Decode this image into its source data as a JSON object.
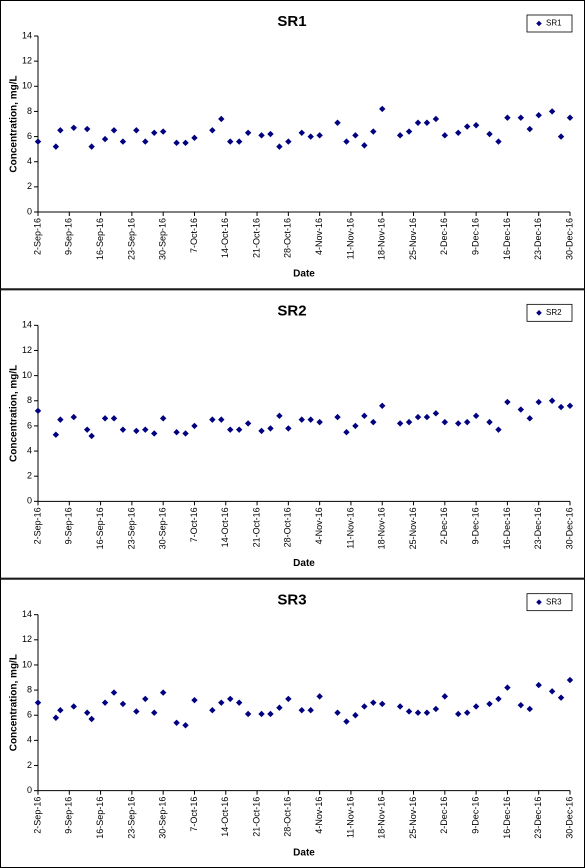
{
  "chart_data": [
    {
      "type": "scatter",
      "title": "SR1",
      "x_label": "Date",
      "y_label": "Concentration, mg/L",
      "x": [
        "2016-09-02",
        "2016-09-06",
        "2016-09-07",
        "2016-09-10",
        "2016-09-13",
        "2016-09-14",
        "2016-09-17",
        "2016-09-19",
        "2016-09-21",
        "2016-09-24",
        "2016-09-26",
        "2016-09-28",
        "2016-09-30",
        "2016-10-03",
        "2016-10-05",
        "2016-10-07",
        "2016-10-11",
        "2016-10-13",
        "2016-10-15",
        "2016-10-17",
        "2016-10-19",
        "2016-10-22",
        "2016-10-24",
        "2016-10-26",
        "2016-10-28",
        "2016-10-31",
        "2016-11-02",
        "2016-11-04",
        "2016-11-08",
        "2016-11-10",
        "2016-11-12",
        "2016-11-14",
        "2016-11-16",
        "2016-11-18",
        "2016-11-22",
        "2016-11-24",
        "2016-11-26",
        "2016-11-28",
        "2016-11-30",
        "2016-12-02",
        "2016-12-05",
        "2016-12-07",
        "2016-12-09",
        "2016-12-12",
        "2016-12-14",
        "2016-12-16",
        "2016-12-19",
        "2016-12-21",
        "2016-12-23",
        "2016-12-26",
        "2016-12-28",
        "2016-12-30"
      ],
      "series": [
        {
          "name": "SR1",
          "color": "#000080",
          "values": [
            5.6,
            5.2,
            6.5,
            6.7,
            6.6,
            5.2,
            5.8,
            6.5,
            5.6,
            6.5,
            5.6,
            6.3,
            6.4,
            5.5,
            5.5,
            5.9,
            6.5,
            7.4,
            5.6,
            5.6,
            6.3,
            6.1,
            6.2,
            5.2,
            5.6,
            6.3,
            6.0,
            6.1,
            7.1,
            5.6,
            6.1,
            5.3,
            6.4,
            8.2,
            6.1,
            6.4,
            7.1,
            7.1,
            7.4,
            6.1,
            6.3,
            6.8,
            6.9,
            6.2,
            5.6,
            7.5,
            7.5,
            6.6,
            7.7,
            8.0,
            6.0,
            7.5
          ]
        }
      ],
      "xlim": [
        "2016-09-02",
        "2016-12-30"
      ],
      "xticks": [
        {
          "value": "2016-09-02",
          "label": "2-Sep-16"
        },
        {
          "value": "2016-09-09",
          "label": "9-Sep-16"
        },
        {
          "value": "2016-09-16",
          "label": "16-Sep-16"
        },
        {
          "value": "2016-09-23",
          "label": "23-Sep-16"
        },
        {
          "value": "2016-09-30",
          "label": "30-Sep-16"
        },
        {
          "value": "2016-10-07",
          "label": "7-Oct-16"
        },
        {
          "value": "2016-10-14",
          "label": "14-Oct-16"
        },
        {
          "value": "2016-10-21",
          "label": "21-Oct-16"
        },
        {
          "value": "2016-10-28",
          "label": "28-Oct-16"
        },
        {
          "value": "2016-11-04",
          "label": "4-Nov-16"
        },
        {
          "value": "2016-11-11",
          "label": "11-Nov-16"
        },
        {
          "value": "2016-11-18",
          "label": "18-Nov-16"
        },
        {
          "value": "2016-11-25",
          "label": "25-Nov-16"
        },
        {
          "value": "2016-12-02",
          "label": "2-Dec-16"
        },
        {
          "value": "2016-12-09",
          "label": "9-Dec-16"
        },
        {
          "value": "2016-12-16",
          "label": "16-Dec-16"
        },
        {
          "value": "2016-12-23",
          "label": "23-Dec-16"
        },
        {
          "value": "2016-12-30",
          "label": "30-Dec-16"
        }
      ],
      "ylim": [
        0,
        14
      ],
      "yticks": [
        0,
        2,
        4,
        6,
        8,
        10,
        12,
        14
      ],
      "legend": "upper right"
    },
    {
      "type": "scatter",
      "title": "SR2",
      "x_label": "Date",
      "y_label": "Concentration, mg/L",
      "x": [
        "2016-09-02",
        "2016-09-06",
        "2016-09-07",
        "2016-09-10",
        "2016-09-13",
        "2016-09-14",
        "2016-09-17",
        "2016-09-19",
        "2016-09-21",
        "2016-09-24",
        "2016-09-26",
        "2016-09-28",
        "2016-09-30",
        "2016-10-03",
        "2016-10-05",
        "2016-10-07",
        "2016-10-11",
        "2016-10-13",
        "2016-10-15",
        "2016-10-17",
        "2016-10-19",
        "2016-10-22",
        "2016-10-24",
        "2016-10-26",
        "2016-10-28",
        "2016-10-31",
        "2016-11-02",
        "2016-11-04",
        "2016-11-08",
        "2016-11-10",
        "2016-11-12",
        "2016-11-14",
        "2016-11-16",
        "2016-11-18",
        "2016-11-22",
        "2016-11-24",
        "2016-11-26",
        "2016-11-28",
        "2016-11-30",
        "2016-12-02",
        "2016-12-05",
        "2016-12-07",
        "2016-12-09",
        "2016-12-12",
        "2016-12-14",
        "2016-12-16",
        "2016-12-19",
        "2016-12-21",
        "2016-12-23",
        "2016-12-26",
        "2016-12-28",
        "2016-12-30"
      ],
      "series": [
        {
          "name": "SR2",
          "color": "#000080",
          "values": [
            7.2,
            5.3,
            6.5,
            6.7,
            5.7,
            5.2,
            6.6,
            6.6,
            5.7,
            5.6,
            5.7,
            5.4,
            6.6,
            5.5,
            5.4,
            6.0,
            6.5,
            6.5,
            5.7,
            5.7,
            6.2,
            5.6,
            5.8,
            6.8,
            5.8,
            6.5,
            6.5,
            6.3,
            6.7,
            5.5,
            6.0,
            6.8,
            6.3,
            7.6,
            6.2,
            6.3,
            6.7,
            6.7,
            7.0,
            6.3,
            6.2,
            6.3,
            6.8,
            6.3,
            5.7,
            7.9,
            7.3,
            6.6,
            7.9,
            8.0,
            7.5,
            7.6
          ]
        }
      ],
      "xlim": [
        "2016-09-02",
        "2016-12-30"
      ],
      "xticks": [
        {
          "value": "2016-09-02",
          "label": "2-Sep-16"
        },
        {
          "value": "2016-09-09",
          "label": "9-Sep-16"
        },
        {
          "value": "2016-09-16",
          "label": "16-Sep-16"
        },
        {
          "value": "2016-09-23",
          "label": "23-Sep-16"
        },
        {
          "value": "2016-09-30",
          "label": "30-Sep-16"
        },
        {
          "value": "2016-10-07",
          "label": "7-Oct-16"
        },
        {
          "value": "2016-10-14",
          "label": "14-Oct-16"
        },
        {
          "value": "2016-10-21",
          "label": "21-Oct-16"
        },
        {
          "value": "2016-10-28",
          "label": "28-Oct-16"
        },
        {
          "value": "2016-11-04",
          "label": "4-Nov-16"
        },
        {
          "value": "2016-11-11",
          "label": "11-Nov-16"
        },
        {
          "value": "2016-11-18",
          "label": "18-Nov-16"
        },
        {
          "value": "2016-11-25",
          "label": "25-Nov-16"
        },
        {
          "value": "2016-12-02",
          "label": "2-Dec-16"
        },
        {
          "value": "2016-12-09",
          "label": "9-Dec-16"
        },
        {
          "value": "2016-12-16",
          "label": "16-Dec-16"
        },
        {
          "value": "2016-12-23",
          "label": "23-Dec-16"
        },
        {
          "value": "2016-12-30",
          "label": "30-Dec-16"
        }
      ],
      "ylim": [
        0,
        14
      ],
      "yticks": [
        0,
        2,
        4,
        6,
        8,
        10,
        12,
        14
      ],
      "legend": "upper right"
    },
    {
      "type": "scatter",
      "title": "SR3",
      "x_label": "Date",
      "y_label": "Concentration, mg/L",
      "x": [
        "2016-09-02",
        "2016-09-06",
        "2016-09-07",
        "2016-09-10",
        "2016-09-13",
        "2016-09-14",
        "2016-09-17",
        "2016-09-19",
        "2016-09-21",
        "2016-09-24",
        "2016-09-26",
        "2016-09-28",
        "2016-09-30",
        "2016-10-03",
        "2016-10-05",
        "2016-10-07",
        "2016-10-11",
        "2016-10-13",
        "2016-10-15",
        "2016-10-17",
        "2016-10-19",
        "2016-10-22",
        "2016-10-24",
        "2016-10-26",
        "2016-10-28",
        "2016-10-31",
        "2016-11-02",
        "2016-11-04",
        "2016-11-08",
        "2016-11-10",
        "2016-11-12",
        "2016-11-14",
        "2016-11-16",
        "2016-11-18",
        "2016-11-22",
        "2016-11-24",
        "2016-11-26",
        "2016-11-28",
        "2016-11-30",
        "2016-12-02",
        "2016-12-05",
        "2016-12-07",
        "2016-12-09",
        "2016-12-12",
        "2016-12-14",
        "2016-12-16",
        "2016-12-19",
        "2016-12-21",
        "2016-12-23",
        "2016-12-26",
        "2016-12-28",
        "2016-12-30"
      ],
      "series": [
        {
          "name": "SR3",
          "color": "#000080",
          "values": [
            7.0,
            5.8,
            6.4,
            6.7,
            6.2,
            5.7,
            7.0,
            7.8,
            6.9,
            6.3,
            7.3,
            6.2,
            7.8,
            5.4,
            5.2,
            7.2,
            6.4,
            7.0,
            7.3,
            7.0,
            6.1,
            6.1,
            6.1,
            6.6,
            7.3,
            6.4,
            6.4,
            7.5,
            6.2,
            5.5,
            6.0,
            6.7,
            7.0,
            6.9,
            6.7,
            6.3,
            6.2,
            6.2,
            6.5,
            7.5,
            6.1,
            6.2,
            6.7,
            6.9,
            7.3,
            8.2,
            6.8,
            6.5,
            8.4,
            7.9,
            7.4,
            8.8
          ]
        }
      ],
      "xlim": [
        "2016-09-02",
        "2016-12-30"
      ],
      "xticks": [
        {
          "value": "2016-09-02",
          "label": "2-Sep-16"
        },
        {
          "value": "2016-09-09",
          "label": "9-Sep-16"
        },
        {
          "value": "2016-09-16",
          "label": "16-Sep-16"
        },
        {
          "value": "2016-09-23",
          "label": "23-Sep-16"
        },
        {
          "value": "2016-09-30",
          "label": "30-Sep-16"
        },
        {
          "value": "2016-10-07",
          "label": "7-Oct-16"
        },
        {
          "value": "2016-10-14",
          "label": "14-Oct-16"
        },
        {
          "value": "2016-10-21",
          "label": "21-Oct-16"
        },
        {
          "value": "2016-10-28",
          "label": "28-Oct-16"
        },
        {
          "value": "2016-11-04",
          "label": "4-Nov-16"
        },
        {
          "value": "2016-11-11",
          "label": "11-Nov-16"
        },
        {
          "value": "2016-11-18",
          "label": "18-Nov-16"
        },
        {
          "value": "2016-11-25",
          "label": "25-Nov-16"
        },
        {
          "value": "2016-12-02",
          "label": "2-Dec-16"
        },
        {
          "value": "2016-12-09",
          "label": "9-Dec-16"
        },
        {
          "value": "2016-12-16",
          "label": "16-Dec-16"
        },
        {
          "value": "2016-12-23",
          "label": "23-Dec-16"
        },
        {
          "value": "2016-12-30",
          "label": "30-Dec-16"
        }
      ],
      "ylim": [
        0,
        14
      ],
      "yticks": [
        0,
        2,
        4,
        6,
        8,
        10,
        12,
        14
      ],
      "legend": "upper right"
    }
  ]
}
